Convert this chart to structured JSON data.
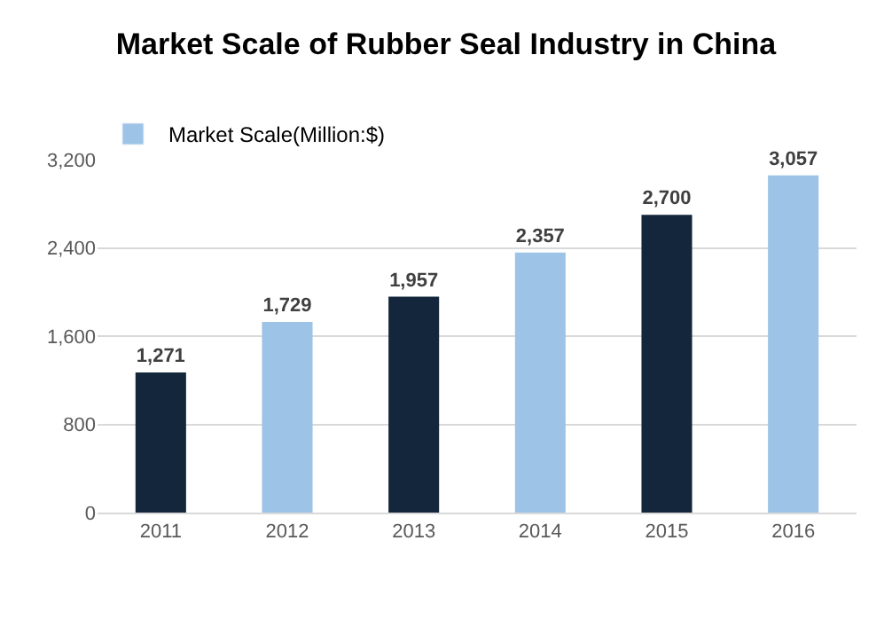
{
  "chart_data": {
    "type": "bar",
    "title": "Market Scale of Rubber Seal Industry in China",
    "categories": [
      "2011",
      "2012",
      "2013",
      "2014",
      "2015",
      "2016"
    ],
    "series": [
      {
        "name": "Market Scale(Million:$)",
        "color": "#9dc3e6",
        "colors": [
          "#13263b",
          "#9dc3e6",
          "#13263b",
          "#9dc3e6",
          "#13263b",
          "#9dc3e6"
        ],
        "values": [
          1271,
          1729,
          1957,
          2357,
          2700,
          3057
        ],
        "value_labels": [
          "1,271",
          "1,729",
          "1,957",
          "2,357",
          "2,700",
          "3,057"
        ]
      }
    ],
    "ylim": [
      0,
      3200
    ],
    "yticks": [
      0,
      {
        "value": 800,
        "label": "800"
      },
      {
        "value": 1600,
        "label": "1,600"
      },
      {
        "value": 2400,
        "label": "2,400"
      },
      {
        "value": 3200,
        "label": "3,200"
      }
    ],
    "grid": "y",
    "legend": "top left"
  }
}
